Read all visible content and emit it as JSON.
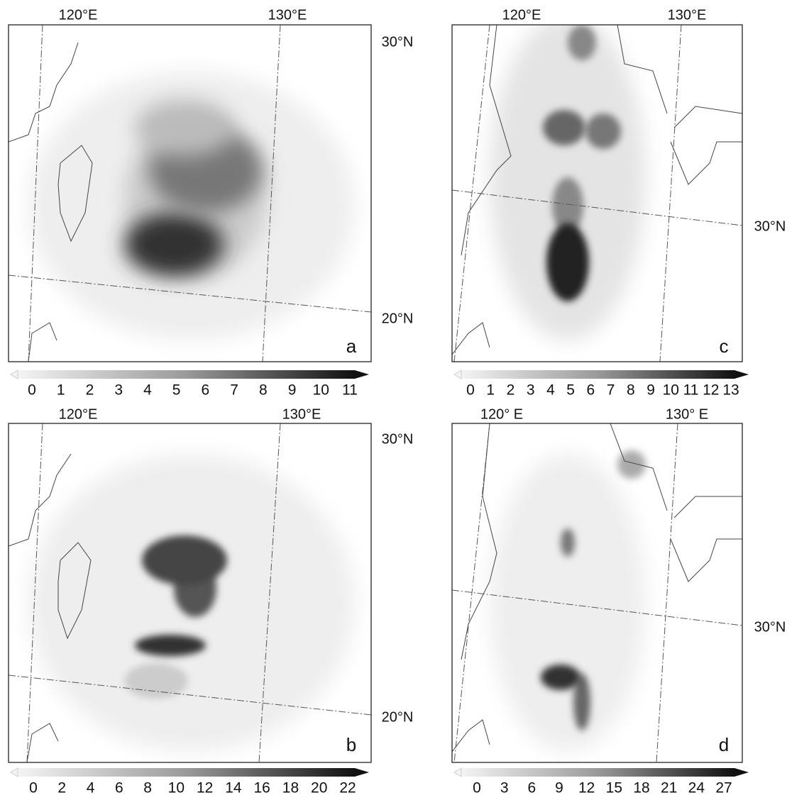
{
  "panels": [
    {
      "label": "a",
      "lon_labels": [
        "120°E",
        "130°E"
      ],
      "lat_labels": [
        "30°N",
        "20°N"
      ],
      "colorbar_ticks": [
        0,
        1,
        2,
        3,
        4,
        5,
        6,
        7,
        8,
        9,
        10,
        11
      ]
    },
    {
      "label": "c",
      "lon_labels": [
        "120°E",
        "130°E"
      ],
      "lat_labels": [
        "30°N"
      ],
      "colorbar_ticks": [
        0,
        1,
        2,
        3,
        4,
        5,
        6,
        7,
        8,
        9,
        10,
        11,
        12,
        13
      ]
    },
    {
      "label": "b",
      "lon_labels": [
        "120°E",
        "130°E"
      ],
      "lat_labels": [
        "30°N",
        "20°N"
      ],
      "colorbar_ticks": [
        0,
        2,
        4,
        6,
        8,
        10,
        12,
        14,
        16,
        18,
        20,
        22
      ]
    },
    {
      "label": "d",
      "lon_labels": [
        "120° E",
        "130° E"
      ],
      "lat_labels": [
        "30°N"
      ],
      "colorbar_ticks": [
        0,
        3,
        6,
        9,
        12,
        15,
        18,
        21,
        24,
        27
      ]
    }
  ]
}
